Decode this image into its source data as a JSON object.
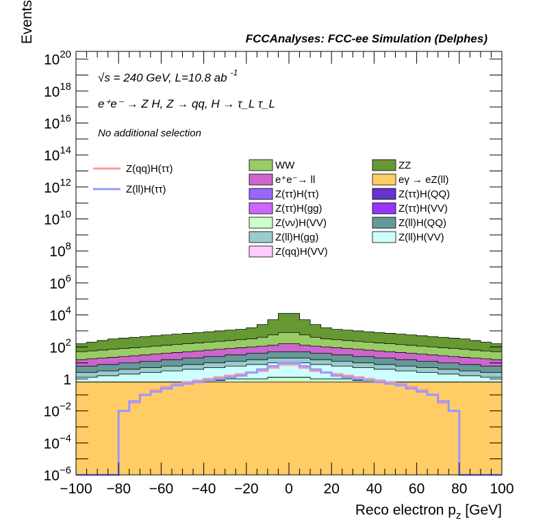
{
  "chart_data": {
    "type": "histogram-stack",
    "title": "FCCAnalyses: FCC-ee Simulation (Delphes)",
    "annotations": {
      "line1": "√s = 240 GeV, L=10.8 ab",
      "line1_sup": "-1",
      "line2": "e⁺e⁻ → Z H, Z → qq, H → τ_L τ_L",
      "line3": "No additional selection"
    },
    "xlabel": "Reco electron p_z [GeV]",
    "ylabel": "Events",
    "xlim": [
      -100,
      100
    ],
    "ylim": [
      1e-06,
      3e+20
    ],
    "yscale": "log",
    "xticks": [
      "−100",
      "−80",
      "−60",
      "−40",
      "−20",
      "0",
      "20",
      "40",
      "60",
      "80",
      "100"
    ],
    "yticks": [
      {
        "exp": -6
      },
      {
        "exp": -4
      },
      {
        "exp": -2
      },
      {
        "label": "1"
      },
      {
        "exp": 2
      },
      {
        "exp": 4
      },
      {
        "exp": 6
      },
      {
        "exp": 8
      },
      {
        "exp": 10
      },
      {
        "exp": 12
      },
      {
        "exp": 14
      },
      {
        "exp": 16
      },
      {
        "exp": 18
      },
      {
        "exp": 20
      }
    ],
    "bins": 40,
    "legend_signal": [
      {
        "name": "Z(qq)H(ττ)",
        "color": "#ff9999"
      },
      {
        "name": "Z(ll)H(ττ)",
        "color": "#9999ff"
      }
    ],
    "legend_bkg_left": [
      {
        "name": "WW",
        "color": "#99cc66"
      },
      {
        "name": "e⁺e⁻→ ll",
        "color": "#cc66cc"
      },
      {
        "name": "Z(ττ)H(ττ)",
        "color": "#9966ff"
      },
      {
        "name": "Z(ττ)H(gg)",
        "color": "#cc66ff"
      },
      {
        "name": "Z(νν)H(VV)",
        "color": "#ccffcc"
      },
      {
        "name": "Z(ll)H(gg)",
        "color": "#99cccc"
      },
      {
        "name": "Z(qq)H(VV)",
        "color": "#ffccff"
      }
    ],
    "legend_bkg_right": [
      {
        "name": "ZZ",
        "color": "#669933"
      },
      {
        "name": "eγ → eZ(ll)",
        "color": "#ffcc66"
      },
      {
        "name": "Z(ττ)H(QQ)",
        "color": "#6633cc"
      },
      {
        "name": "Z(ττ)H(VV)",
        "color": "#9933ff"
      },
      {
        "name": "Z(ll)H(QQ)",
        "color": "#669999"
      },
      {
        "name": "Z(ll)H(VV)",
        "color": "#ccffff"
      }
    ],
    "stack_order": [
      "eγ → eZ(ll)",
      "Z(νν)H(VV)",
      "Z(ττ)H(gg)",
      "Z(ττ)H(VV)",
      "Z(ττ)H(QQ)",
      "Z(ττ)H(ττ)",
      "Z(qq)H(VV)",
      "Z(ll)H(VV)",
      "Z(ll)H(gg)",
      "Z(ll)H(QQ)",
      "e⁺e⁻→ ll",
      "WW",
      "ZZ"
    ],
    "stack_cumulative_log10": {
      "eγ → eZ(ll)": [
        -0.2,
        -0.2,
        -0.2,
        -0.2,
        -0.2,
        -0.2,
        -0.2,
        -0.2,
        -0.2,
        -0.2,
        -0.2,
        -0.2,
        -0.2,
        -0.2,
        -0.2,
        -0.2,
        -0.2,
        -0.2,
        -0.2,
        -0.2,
        -0.2,
        -0.2,
        -0.2,
        -0.2,
        -0.2,
        -0.2,
        -0.2,
        -0.2,
        -0.2,
        -0.2,
        -0.2,
        -0.2,
        -0.2,
        -0.2,
        -0.2,
        -0.2,
        -0.2,
        -0.2,
        -0.2,
        -0.2
      ],
      "Z(νν)H(VV)": [
        -0.2,
        -0.2,
        -0.2,
        -0.2,
        -0.2,
        -0.2,
        -0.2,
        -0.2,
        -0.2,
        -0.2,
        -0.2,
        -0.2,
        -0.1,
        -0.1,
        0,
        0,
        0,
        0,
        0.1,
        0.1,
        0.1,
        0.1,
        0,
        0,
        0,
        0,
        -0.1,
        -0.1,
        -0.2,
        -0.2,
        -0.2,
        -0.2,
        -0.2,
        -0.2,
        -0.2,
        -0.2,
        -0.2,
        -0.2,
        -0.2,
        -0.2
      ],
      "Z(ττ)H(gg)": [
        -0.2,
        -0.2,
        -0.2,
        -0.2,
        -0.2,
        -0.2,
        -0.2,
        -0.2,
        -0.2,
        -0.2,
        -0.2,
        -0.2,
        -0.1,
        -0.1,
        0,
        0,
        0,
        0,
        0.1,
        0.1,
        0.1,
        0.1,
        0,
        0,
        0,
        0,
        -0.1,
        -0.1,
        -0.2,
        -0.2,
        -0.2,
        -0.2,
        -0.2,
        -0.2,
        -0.2,
        -0.2,
        -0.2,
        -0.2,
        -0.2,
        -0.2
      ],
      "Z(ττ)H(VV)": [
        -0.2,
        -0.2,
        -0.2,
        -0.2,
        -0.2,
        -0.2,
        -0.2,
        -0.2,
        -0.2,
        -0.2,
        -0.2,
        -0.2,
        -0.1,
        -0.1,
        0,
        0,
        0,
        0,
        0.1,
        0.1,
        0.1,
        0.1,
        0,
        0,
        0,
        0,
        -0.1,
        -0.1,
        -0.2,
        -0.2,
        -0.2,
        -0.2,
        -0.2,
        -0.2,
        -0.2,
        -0.2,
        -0.2,
        -0.2,
        -0.2,
        -0.2
      ],
      "Z(ττ)H(QQ)": [
        -0.2,
        -0.2,
        -0.2,
        -0.2,
        -0.2,
        -0.2,
        -0.2,
        -0.2,
        -0.2,
        -0.2,
        -0.2,
        -0.2,
        -0.1,
        -0.1,
        0,
        0,
        0,
        0,
        0.1,
        0.1,
        0.1,
        0.1,
        0,
        0,
        0,
        0,
        -0.1,
        -0.1,
        -0.2,
        -0.2,
        -0.2,
        -0.2,
        -0.2,
        -0.2,
        -0.2,
        -0.2,
        -0.2,
        -0.2,
        -0.2,
        -0.2
      ],
      "Z(ττ)H(ττ)": [
        -0.2,
        -0.2,
        -0.2,
        -0.2,
        -0.2,
        -0.2,
        -0.2,
        -0.2,
        -0.2,
        -0.2,
        -0.2,
        -0.2,
        -0.1,
        -0.1,
        0,
        0,
        0,
        0,
        0.1,
        0.1,
        0.1,
        0.1,
        0,
        0,
        0,
        0,
        -0.1,
        -0.1,
        -0.2,
        -0.2,
        -0.2,
        -0.2,
        -0.2,
        -0.2,
        -0.2,
        -0.2,
        -0.2,
        -0.2,
        -0.2,
        -0.2
      ],
      "Z(qq)H(VV)": [
        -0.2,
        -0.2,
        -0.2,
        -0.2,
        -0.2,
        -0.2,
        -0.2,
        -0.2,
        -0.2,
        -0.2,
        -0.2,
        -0.2,
        -0.1,
        -0.1,
        0,
        0,
        0,
        0,
        0.1,
        0.1,
        0.1,
        0.1,
        0,
        0,
        0,
        0,
        -0.1,
        -0.1,
        -0.2,
        -0.2,
        -0.2,
        -0.2,
        -0.2,
        -0.2,
        -0.2,
        -0.2,
        -0.2,
        -0.2,
        -0.2,
        -0.2
      ],
      "Z(ll)H(VV)": [
        0.1,
        0.1,
        0.2,
        0.2,
        0.3,
        0.3,
        0.4,
        0.4,
        0.5,
        0.5,
        0.6,
        0.6,
        0.7,
        0.7,
        0.8,
        0.8,
        0.9,
        0.9,
        1.0,
        1.0,
        1.0,
        1.0,
        0.9,
        0.9,
        0.8,
        0.8,
        0.7,
        0.7,
        0.6,
        0.6,
        0.5,
        0.5,
        0.4,
        0.4,
        0.3,
        0.3,
        0.2,
        0.2,
        0.1,
        0.1
      ],
      "Z(ll)H(gg)": [
        0.4,
        0.4,
        0.5,
        0.5,
        0.6,
        0.6,
        0.7,
        0.7,
        0.8,
        0.8,
        0.9,
        0.9,
        1.0,
        1.0,
        1.1,
        1.1,
        1.2,
        1.2,
        1.3,
        1.3,
        1.3,
        1.3,
        1.2,
        1.2,
        1.1,
        1.1,
        1.0,
        1.0,
        0.9,
        0.9,
        0.8,
        0.8,
        0.7,
        0.7,
        0.6,
        0.6,
        0.5,
        0.5,
        0.4,
        0.4
      ],
      "Z(ll)H(QQ)": [
        0.8,
        0.8,
        0.9,
        0.9,
        1.0,
        1.0,
        1.1,
        1.1,
        1.2,
        1.2,
        1.3,
        1.3,
        1.4,
        1.4,
        1.5,
        1.5,
        1.6,
        1.6,
        1.7,
        1.7,
        1.7,
        1.7,
        1.6,
        1.6,
        1.5,
        1.5,
        1.4,
        1.4,
        1.3,
        1.3,
        1.2,
        1.2,
        1.1,
        1.1,
        1.0,
        1.0,
        0.9,
        0.9,
        0.8,
        0.8
      ],
      "e⁺e⁻→ ll": [
        1.2,
        1.25,
        1.3,
        1.35,
        1.4,
        1.45,
        1.5,
        1.55,
        1.6,
        1.65,
        1.7,
        1.75,
        1.8,
        1.85,
        1.9,
        1.95,
        2.0,
        2.05,
        2.1,
        2.2,
        2.2,
        2.1,
        2.05,
        2.0,
        1.95,
        1.9,
        1.85,
        1.8,
        1.75,
        1.7,
        1.65,
        1.6,
        1.55,
        1.5,
        1.45,
        1.4,
        1.35,
        1.3,
        1.25,
        1.2
      ],
      "WW": [
        1.7,
        1.75,
        1.8,
        1.85,
        1.9,
        1.95,
        2.0,
        2.05,
        2.1,
        2.15,
        2.2,
        2.25,
        2.3,
        2.35,
        2.4,
        2.45,
        2.5,
        2.6,
        2.75,
        2.9,
        2.9,
        2.75,
        2.6,
        2.5,
        2.45,
        2.4,
        2.35,
        2.3,
        2.25,
        2.2,
        2.15,
        2.1,
        2.05,
        2.0,
        1.95,
        1.9,
        1.85,
        1.8,
        1.75,
        1.7
      ],
      "ZZ": [
        2.2,
        2.3,
        2.4,
        2.5,
        2.55,
        2.6,
        2.65,
        2.7,
        2.75,
        2.8,
        2.85,
        2.9,
        2.95,
        3.0,
        3.05,
        3.1,
        3.2,
        3.4,
        3.7,
        4.1,
        4.1,
        3.7,
        3.4,
        3.2,
        3.1,
        3.05,
        3.0,
        2.95,
        2.9,
        2.85,
        2.8,
        2.75,
        2.7,
        2.65,
        2.6,
        2.55,
        2.5,
        2.4,
        2.3,
        2.2
      ]
    },
    "signal_log10": {
      "Z(qq)H(ττ)": [
        -6.5,
        -6.5,
        -6.5,
        -6.5,
        -2.0,
        -1.5,
        -1.0,
        -0.7,
        -0.5,
        -0.3,
        -0.2,
        -0.1,
        0.0,
        0.1,
        0.2,
        0.3,
        0.4,
        0.5,
        0.7,
        0.9,
        0.9,
        0.7,
        0.5,
        0.4,
        0.3,
        0.2,
        0.1,
        0.0,
        -0.1,
        -0.2,
        -0.3,
        -0.5,
        -0.7,
        -1.0,
        -1.5,
        -2.0,
        -6.5,
        -6.5,
        -6.5,
        -6.5
      ],
      "Z(ll)H(ττ)": [
        -6.5,
        -6.5,
        -6.5,
        -6.5,
        -2.0,
        -1.4,
        -1.0,
        -0.8,
        -0.6,
        -0.4,
        -0.3,
        -0.2,
        -0.1,
        0.0,
        0.1,
        0.2,
        0.4,
        0.6,
        0.8,
        1.0,
        1.0,
        0.8,
        0.6,
        0.4,
        0.2,
        0.1,
        0.0,
        -0.1,
        -0.2,
        -0.3,
        -0.4,
        -0.6,
        -0.8,
        -1.0,
        -1.4,
        -2.0,
        -6.5,
        -6.5,
        -6.5,
        -6.5
      ]
    }
  }
}
